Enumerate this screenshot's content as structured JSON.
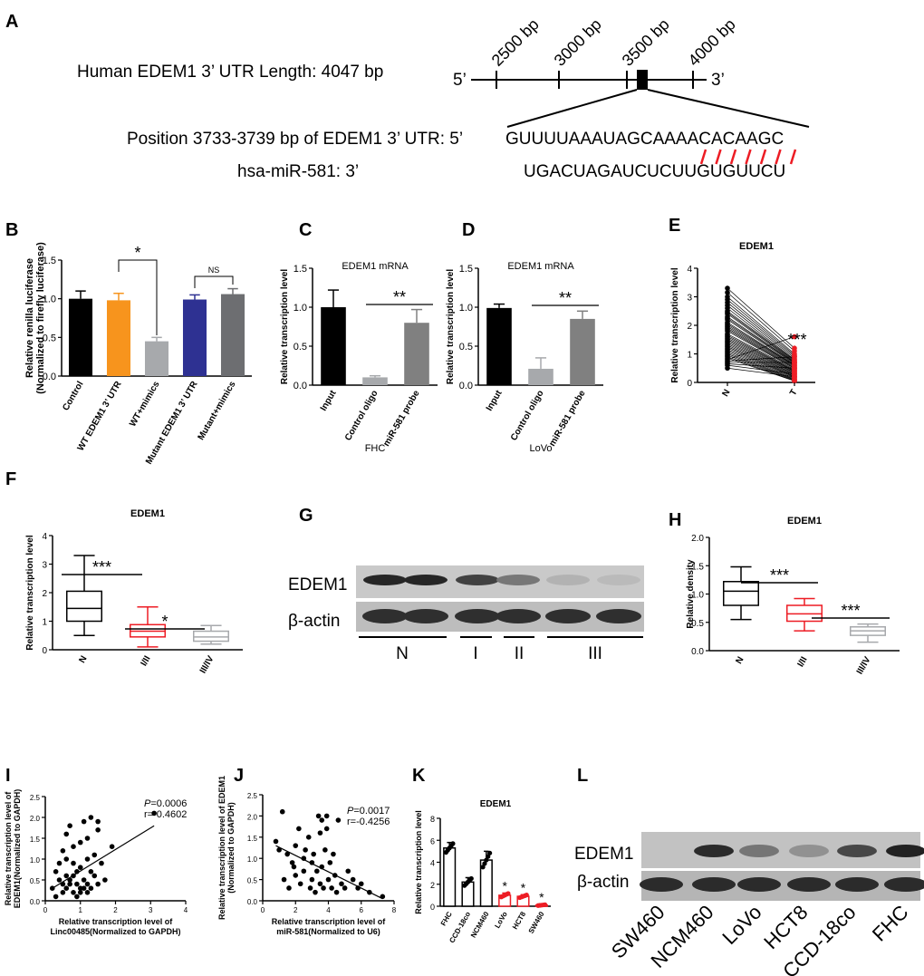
{
  "panel_letters": [
    "A",
    "B",
    "C",
    "D",
    "E",
    "F",
    "G",
    "H",
    "I",
    "J",
    "K",
    "L"
  ],
  "colors": {
    "black": "#000000",
    "orange": "#f7941d",
    "light_gray": "#a7a9ac",
    "blue": "#2e3192",
    "dark_gray": "#6d6e71",
    "red": "#ed1c24",
    "gray_bar": "#808080"
  },
  "panel_a": {
    "length_label": "Human EDEM1 3’ UTR Length: 4047 bp",
    "five_prime": "5’",
    "three_prime": "3’",
    "ticks": [
      "2500 bp",
      "3000 bp",
      "3500 bp",
      "4000 bp"
    ],
    "position_label": "Position 3733-3739 bp of EDEM1 3’ UTR: 5’",
    "utr_seq": "GUUUUAAAUAGCAAAACACAAGC",
    "mirna_label": "hsa-miR-581: 3’",
    "mirna_seq": "UGACUAGAUCUCUUGUGUUCU",
    "pair_count": 7
  },
  "chart_data": [
    {
      "panel": "B",
      "type": "bar",
      "ylabel": "Relative renilla luciferase (Normalized to firefly luciferase)",
      "categories": [
        "Control",
        "WT EDEM1 3’ UTR",
        "WT+mimics",
        "Mutant EDEM1 3’ UTR",
        "Mutant+mimics"
      ],
      "values": [
        1.0,
        0.98,
        0.45,
        0.99,
        1.06
      ],
      "errors": [
        0.1,
        0.09,
        0.05,
        0.06,
        0.07
      ],
      "colors": [
        "#000000",
        "#f7941d",
        "#a7a9ac",
        "#2e3192",
        "#6d6e71"
      ],
      "ylim": [
        0,
        1.5
      ],
      "yticks": [
        "0.0",
        "0.5",
        "1.0",
        "1.5"
      ],
      "significance": [
        "*",
        "NS"
      ]
    },
    {
      "panel": "C",
      "type": "bar",
      "title": "EDEM1 mRNA",
      "ylabel": "Relative transcription level",
      "xlabel": "FHC",
      "categories": [
        "Input",
        "Control oligo",
        "miR-581 probe"
      ],
      "values": [
        1.0,
        0.1,
        0.8
      ],
      "errors": [
        0.22,
        0.02,
        0.17
      ],
      "colors": [
        "#000000",
        "#a7a9ac",
        "#808080"
      ],
      "ylim": [
        0,
        1.5
      ],
      "yticks": [
        "0.0",
        "0.5",
        "1.0",
        "1.5"
      ],
      "significance": "**"
    },
    {
      "panel": "D",
      "type": "bar",
      "title": "EDEM1 mRNA",
      "ylabel": "Relative transcription level",
      "xlabel": "LoVo",
      "categories": [
        "Input",
        "Control oligo",
        "miR-581 probe"
      ],
      "values": [
        0.99,
        0.21,
        0.85
      ],
      "errors": [
        0.05,
        0.14,
        0.1
      ],
      "colors": [
        "#000000",
        "#a7a9ac",
        "#808080"
      ],
      "ylim": [
        0,
        1.5
      ],
      "yticks": [
        "0.0",
        "0.5",
        "1.0",
        "1.5"
      ],
      "significance": "**"
    },
    {
      "panel": "E",
      "type": "line",
      "title": "EDEM1",
      "ylabel": "Relative transcription level",
      "categories": [
        "N",
        "T"
      ],
      "n_values": [
        3.3,
        3.15,
        3.0,
        2.9,
        2.8,
        2.7,
        2.6,
        2.5,
        2.45,
        2.4,
        2.3,
        2.25,
        2.2,
        2.1,
        2.05,
        2.0,
        1.95,
        1.9,
        1.85,
        1.8,
        1.7,
        1.65,
        1.6,
        1.55,
        1.5,
        1.45,
        1.4,
        1.35,
        1.3,
        1.25,
        1.2,
        1.15,
        1.1,
        1.05,
        1.0,
        0.95,
        0.9,
        0.85,
        0.8,
        0.75,
        0.7,
        0.65,
        0.6,
        0.5
      ],
      "t_values": [
        1.2,
        1.1,
        1.0,
        0.95,
        0.9,
        0.85,
        0.8,
        0.78,
        0.75,
        0.72,
        0.7,
        0.68,
        0.65,
        0.62,
        0.6,
        0.58,
        0.55,
        0.52,
        0.5,
        0.48,
        0.45,
        0.42,
        0.4,
        0.38,
        0.35,
        0.33,
        0.3,
        0.28,
        0.25,
        0.22,
        0.2,
        0.18,
        0.15,
        0.12,
        0.1,
        0.08,
        0.06,
        0.05,
        1.6,
        0.9,
        0.7,
        0.5,
        0.3,
        0.2
      ],
      "ylim": [
        0,
        4
      ],
      "yticks": [
        "0",
        "1",
        "2",
        "3",
        "4"
      ],
      "significance": "***"
    },
    {
      "panel": "F",
      "type": "box",
      "title": "EDEM1",
      "ylabel": "Relative transcription level",
      "categories": [
        "N",
        "I/II",
        "III/IV"
      ],
      "boxes": [
        {
          "min": 0.5,
          "q1": 1.0,
          "median": 1.45,
          "q3": 2.05,
          "max": 3.3,
          "color": "#000000"
        },
        {
          "min": 0.1,
          "q1": 0.45,
          "median": 0.65,
          "q3": 0.88,
          "max": 1.5,
          "color": "#ed1c24"
        },
        {
          "min": 0.2,
          "q1": 0.3,
          "median": 0.45,
          "q3": 0.65,
          "max": 0.85,
          "color": "#a7a9ac"
        }
      ],
      "ylim": [
        0,
        4
      ],
      "yticks": [
        "0",
        "1",
        "2",
        "3",
        "4"
      ],
      "significance": [
        "***",
        "*"
      ]
    },
    {
      "panel": "H",
      "type": "box",
      "title": "EDEM1",
      "ylabel": "Relative density",
      "categories": [
        "N",
        "I/II",
        "III/IV"
      ],
      "boxes": [
        {
          "min": 0.55,
          "q1": 0.8,
          "median": 1.05,
          "q3": 1.22,
          "max": 1.48,
          "color": "#000000"
        },
        {
          "min": 0.35,
          "q1": 0.52,
          "median": 0.65,
          "q3": 0.8,
          "max": 0.92,
          "color": "#ed1c24"
        },
        {
          "min": 0.15,
          "q1": 0.27,
          "median": 0.35,
          "q3": 0.42,
          "max": 0.47,
          "color": "#a7a9ac"
        }
      ],
      "ylim": [
        0,
        2.0
      ],
      "yticks": [
        "0.0",
        "0.5",
        "1.0",
        "1.5",
        "2.0"
      ],
      "significance": [
        "***",
        "***"
      ]
    },
    {
      "panel": "I",
      "type": "scatter",
      "ylabel": "Relative transcription level of EDEM1(Normalized to GAPDH)",
      "xlabel": "Relative transcription level of Linc00485(Normalized to GAPDH)",
      "p_value": "=0.0006",
      "r_value": "r=-0.4602",
      "x": [
        0.2,
        0.3,
        0.3,
        0.4,
        0.4,
        0.5,
        0.5,
        0.5,
        0.6,
        0.6,
        0.6,
        0.7,
        0.7,
        0.7,
        0.8,
        0.8,
        0.8,
        0.9,
        0.9,
        0.9,
        1.0,
        1.0,
        1.0,
        1.0,
        1.1,
        1.1,
        1.1,
        1.2,
        1.2,
        1.2,
        1.3,
        1.3,
        1.3,
        1.4,
        1.4,
        1.5,
        1.5,
        1.5,
        1.6,
        1.7,
        1.9,
        0.6,
        0.8,
        1.2,
        3.1
      ],
      "y": [
        0.3,
        0.7,
        0.1,
        0.9,
        0.5,
        0.4,
        1.2,
        0.2,
        1.0,
        0.6,
        0.3,
        0.5,
        1.8,
        0.4,
        0.2,
        0.6,
        1.3,
        0.4,
        0.7,
        0.1,
        0.3,
        1.4,
        0.8,
        0.2,
        0.5,
        1.9,
        0.3,
        0.4,
        1.0,
        0.2,
        0.7,
        2.0,
        0.3,
        1.1,
        0.6,
        0.4,
        1.7,
        1.9,
        0.9,
        0.5,
        1.3,
        1.6,
        0.9,
        1.5,
        2.1
      ],
      "fit": {
        "x": [
          0.2,
          3.1
        ],
        "y": [
          0.3,
          1.8
        ]
      },
      "xlim": [
        0,
        4
      ],
      "ylim": [
        0,
        2.5
      ],
      "xticks": [
        "0",
        "1",
        "2",
        "3",
        "4"
      ],
      "yticks": [
        "0.0",
        "0.5",
        "1.0",
        "1.5",
        "2.0",
        "2.5"
      ]
    },
    {
      "panel": "J",
      "type": "scatter",
      "ylabel": "Relative transcription level of EDEM1 (Normalized to GAPDH)",
      "xlabel": "Relative transcription level of miR-581(Normalized to U6)",
      "p_value": "=0.0017",
      "r_value": "r=-0.4256",
      "x": [
        0.8,
        1.0,
        1.2,
        1.3,
        1.5,
        1.6,
        1.8,
        2.0,
        2.0,
        2.2,
        2.3,
        2.5,
        2.5,
        2.6,
        2.8,
        2.9,
        3.0,
        3.0,
        3.1,
        3.2,
        3.3,
        3.4,
        3.5,
        3.5,
        3.6,
        3.7,
        3.8,
        3.9,
        4.0,
        4.1,
        4.2,
        4.3,
        4.4,
        4.5,
        4.6,
        4.8,
        5.0,
        5.2,
        5.5,
        5.8,
        6.0,
        6.5,
        7.3,
        1.9,
        3.6,
        3.9
      ],
      "y": [
        1.4,
        1.2,
        2.1,
        0.5,
        1.1,
        0.3,
        0.9,
        1.3,
        0.6,
        1.7,
        0.4,
        1.0,
        0.7,
        1.2,
        1.5,
        0.3,
        0.9,
        0.5,
        1.1,
        0.2,
        0.7,
        2.0,
        0.4,
        1.6,
        0.8,
        0.3,
        1.2,
        2.0,
        0.5,
        0.9,
        0.3,
        1.1,
        0.6,
        0.2,
        1.9,
        0.4,
        0.3,
        0.7,
        0.5,
        0.3,
        0.4,
        0.2,
        0.1,
        0.8,
        1.9,
        1.7
      ],
      "fit": {
        "x": [
          0.8,
          7.3
        ],
        "y": [
          1.3,
          0.05
        ]
      },
      "xlim": [
        0,
        8
      ],
      "ylim": [
        0,
        2.5
      ],
      "xticks": [
        "0",
        "2",
        "4",
        "6",
        "8"
      ],
      "yticks": [
        "0.0",
        "0.5",
        "1.0",
        "1.5",
        "2.0",
        "2.5"
      ]
    },
    {
      "panel": "K",
      "type": "bar",
      "title": "EDEM1",
      "ylabel": "Relative transcription level",
      "categories": [
        "FHC",
        "CCD-18co",
        "NCM460",
        "LoVo",
        "HCT8",
        "SW460"
      ],
      "values": [
        5.3,
        2.2,
        4.2,
        1.0,
        0.9,
        0.1
      ],
      "errors": [
        0.5,
        0.4,
        0.8,
        0.2,
        0.15,
        0.05
      ],
      "colors": [
        "#000000",
        "#000000",
        "#000000",
        "#ed1c24",
        "#ed1c24",
        "#ed1c24"
      ],
      "ylim": [
        0,
        8
      ],
      "yticks": [
        "0",
        "2",
        "4",
        "6",
        "8"
      ],
      "significance": [
        "*",
        "*",
        "*"
      ]
    }
  ],
  "panel_g": {
    "row_labels": [
      "EDEM1",
      "β-actin"
    ],
    "groups": [
      "N",
      "I",
      "II",
      "III"
    ],
    "edem1_intensity": [
      0.9,
      0.9,
      0.75,
      0.45,
      0.12,
      0.08
    ],
    "actin_intensity": [
      0.85,
      0.85,
      0.85,
      0.85,
      0.85,
      0.85
    ]
  },
  "panel_l": {
    "row_labels": [
      "EDEM1",
      "β-actin"
    ],
    "lanes": [
      "SW460",
      "NCM460",
      "LoVo",
      "HCT8",
      "CCD-18co",
      "FHC"
    ],
    "edem1_intensity": [
      0.0,
      0.85,
      0.45,
      0.3,
      0.7,
      0.9
    ],
    "actin_intensity": [
      0.85,
      0.85,
      0.85,
      0.85,
      0.85,
      0.85
    ]
  }
}
